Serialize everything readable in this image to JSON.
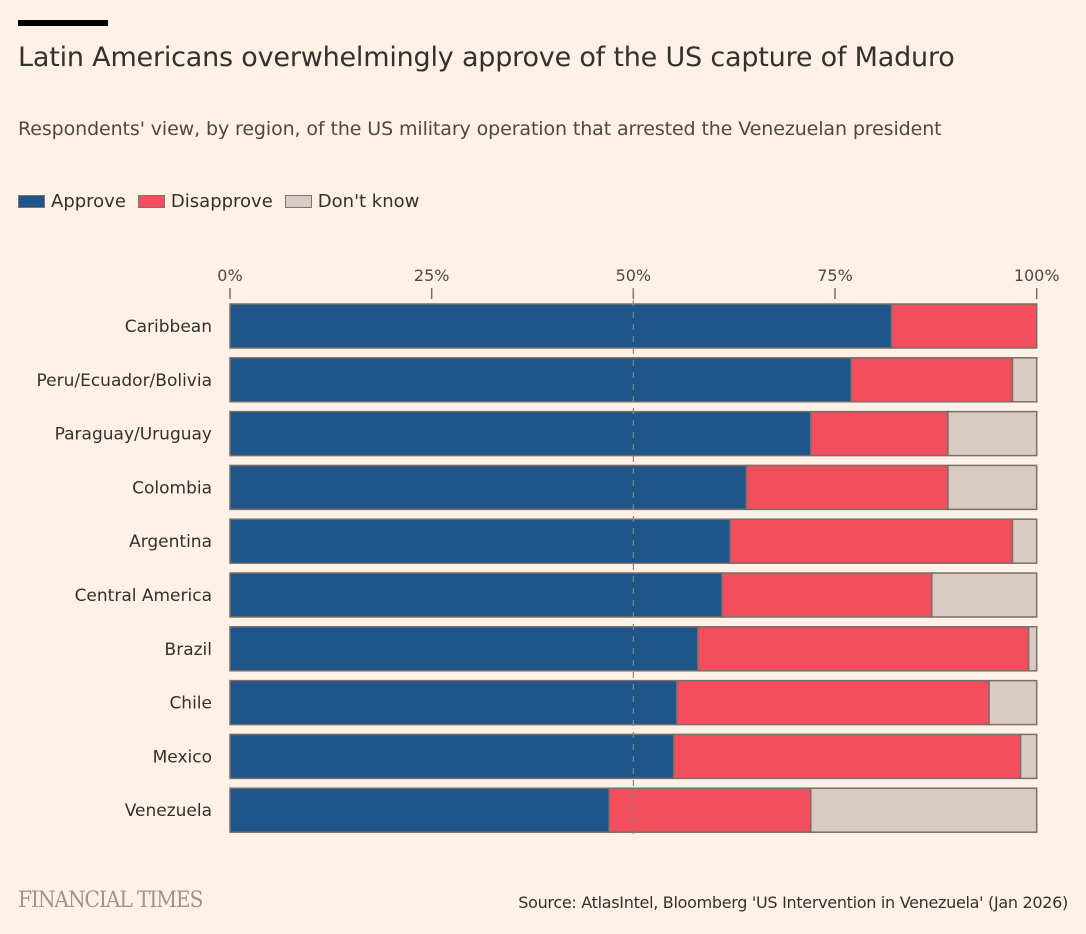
{
  "header": {
    "title": "Latin Americans overwhelmingly approve of the US capture of Maduro",
    "subtitle": "Respondents' view, by region, of the US military operation that arrested the Venezuelan president"
  },
  "legend": [
    {
      "label": "Approve",
      "color": "#20558a"
    },
    {
      "label": "Disapprove",
      "color": "#f24e5d"
    },
    {
      "label": "Don't know",
      "color": "#d9cbc1"
    }
  ],
  "footer": {
    "brand": "FINANCIAL TIMES",
    "source": "Source: AtlasIntel, Bloomberg 'US Intervention in Venezuela' (Jan 2026)"
  },
  "chart_data": {
    "type": "bar",
    "orientation": "horizontal",
    "stacked": true,
    "title": "Latin Americans overwhelmingly approve of the US capture of Maduro",
    "subtitle": "Respondents' view, by region, of the US military operation that arrested the Venezuelan president",
    "xlabel": "",
    "ylabel": "",
    "xlim": [
      0,
      100
    ],
    "x_ticks": [
      0,
      25,
      50,
      75,
      100
    ],
    "x_tick_labels": [
      "0%",
      "25%",
      "50%",
      "75%",
      "100%"
    ],
    "reference_line": {
      "value": 50,
      "style": "dashed"
    },
    "legend_position": "top-left",
    "categories": [
      "Caribbean",
      "Peru/Ecuador/Bolivia",
      "Paraguay/Uruguay",
      "Colombia",
      "Argentina",
      "Central America",
      "Brazil",
      "Chile",
      "Mexico",
      "Venezuela"
    ],
    "series": [
      {
        "name": "Approve",
        "color": "#20558a",
        "values": [
          82,
          77,
          72,
          64,
          62,
          61,
          58,
          55.4,
          55,
          47
        ]
      },
      {
        "name": "Disapprove",
        "color": "#f24e5d",
        "values": [
          18,
          20,
          17,
          25,
          35,
          26,
          41,
          38.7,
          43,
          25
        ]
      },
      {
        "name": "Don't know",
        "color": "#d9cbc1",
        "values": [
          0,
          3,
          11,
          11,
          3,
          13,
          1,
          5.9,
          2,
          28
        ]
      }
    ]
  }
}
